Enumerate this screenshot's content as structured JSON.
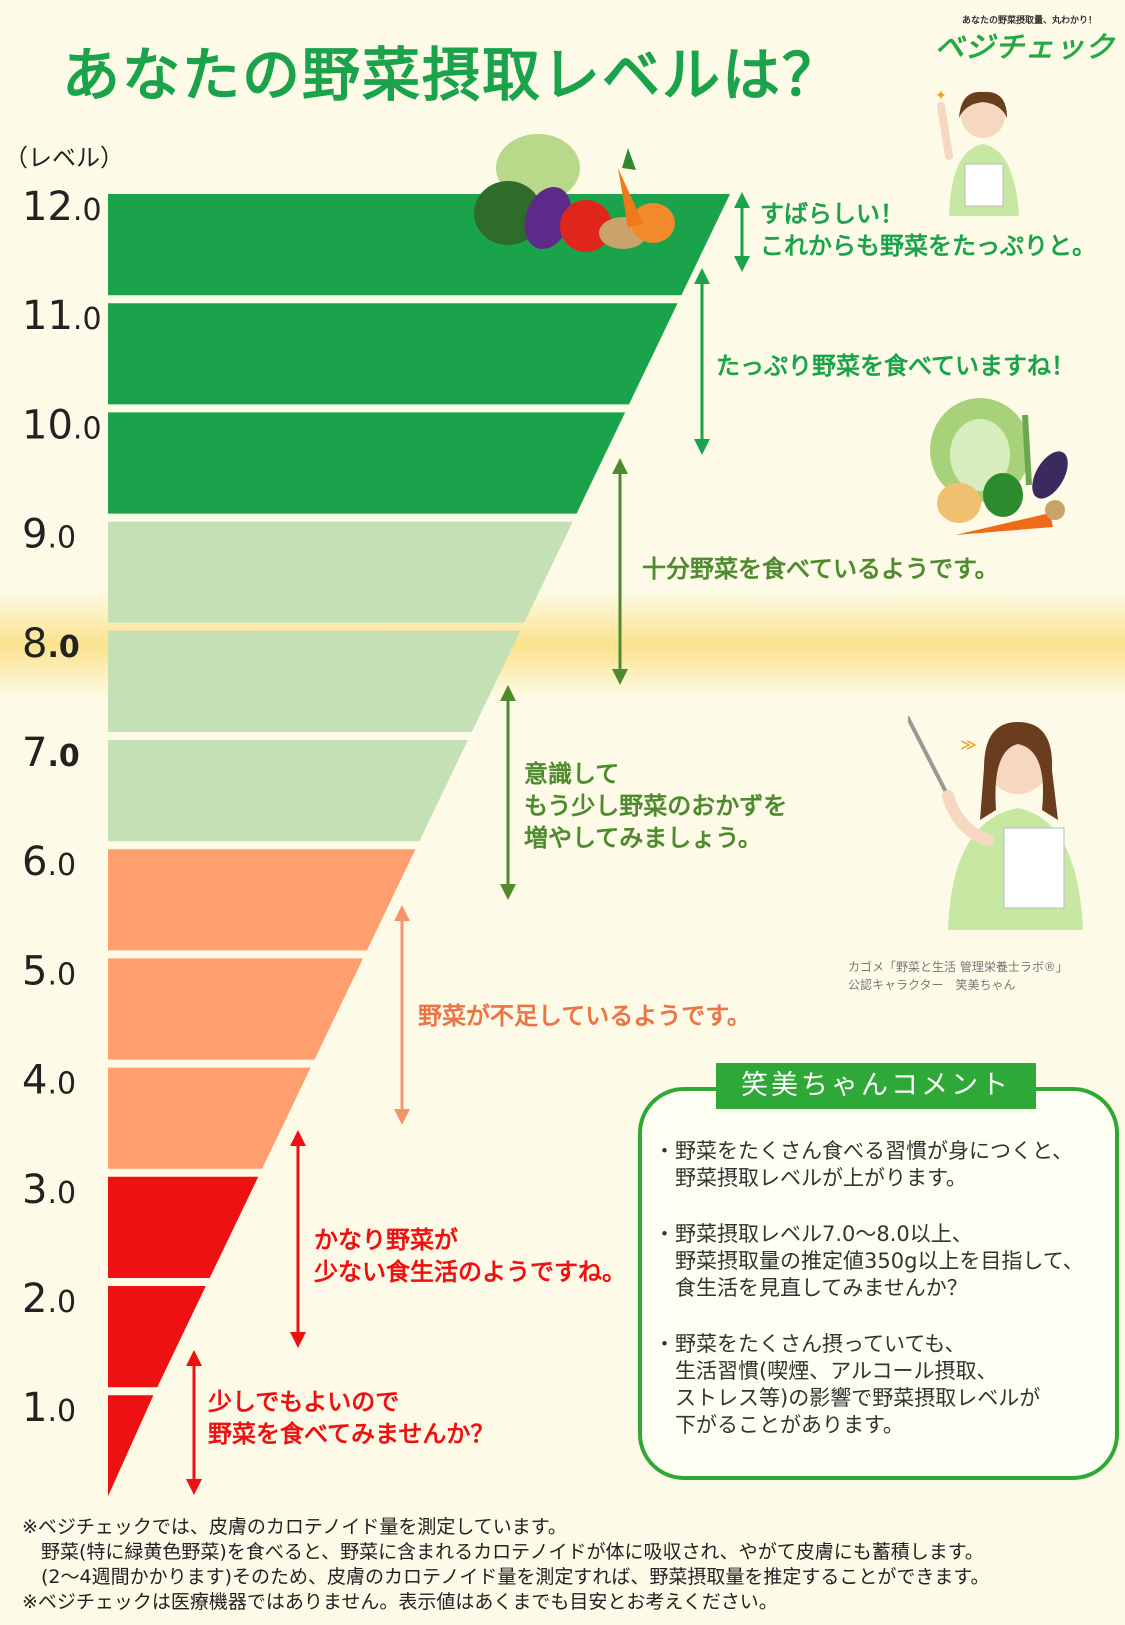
{
  "title": "あなたの野菜摂取レベルは？",
  "logo": {
    "tagline": "あなたの野菜摂取量、丸わかり！",
    "name": "ベジチェック"
  },
  "chart_data": {
    "type": "bar",
    "orientation": "horizontal",
    "unit_label": "（レベル）",
    "levels": [
      12,
      11,
      10,
      9,
      8,
      7,
      6,
      5,
      4,
      3,
      2,
      1
    ],
    "tick_labels": [
      {
        "int": "12",
        "dec": ".0"
      },
      {
        "int": "11",
        "dec": ".0"
      },
      {
        "int": "10",
        "dec": ".0"
      },
      {
        "int": "9",
        "dec": ".0"
      },
      {
        "int": "8",
        "dec": ".0"
      },
      {
        "int": "7",
        "dec": ".0"
      },
      {
        "int": "6",
        "dec": ".0"
      },
      {
        "int": "5",
        "dec": ".0"
      },
      {
        "int": "4",
        "dec": ".0"
      },
      {
        "int": "3",
        "dec": ".0"
      },
      {
        "int": "2",
        "dec": ".0"
      },
      {
        "int": "1",
        "dec": ".0"
      }
    ],
    "highlighted_levels": [
      8,
      7
    ],
    "ranges": [
      {
        "from": 10,
        "to": 12,
        "color": "#1aa34a",
        "arrow_color": "#1aa34a",
        "text_color": "#1aa34a",
        "lines": [
          "すばらしい！",
          "これからも野菜をたっぷりと。"
        ]
      },
      {
        "from": 10,
        "to": 12,
        "color": "#1aa34a",
        "arrow_color": "#1aa34a",
        "text_color": "#1aa34a",
        "lines": [
          "たっぷり野菜を食べていますね！"
        ]
      },
      {
        "from": 7,
        "to": 9,
        "color": "#c4e0b4",
        "arrow_color": "#4f8a2f",
        "text_color": "#4f8a2f",
        "lines": [
          "十分野菜を食べているようです。"
        ]
      },
      {
        "from": 7,
        "to": 9,
        "color": "#c4e0b4",
        "arrow_color": "#4f8a2f",
        "text_color": "#4f8a2f",
        "lines": [
          "意識して",
          "もう少し野菜のおかずを",
          "増やしてみましょう。"
        ]
      },
      {
        "from": 4,
        "to": 6,
        "color": "#ff9e6e",
        "arrow_color": "#f4946a",
        "text_color": "#ed7444",
        "lines": [
          "野菜が不足しているようです。"
        ]
      },
      {
        "from": 1,
        "to": 3,
        "color": "#ee1111",
        "arrow_color": "#ee1111",
        "text_color": "#ee1111",
        "lines": [
          "かなり野菜が",
          "少ない食生活のようですね。"
        ]
      },
      {
        "from": 1,
        "to": 3,
        "color": "#ee1111",
        "arrow_color": "#ee1111",
        "text_color": "#ee1111",
        "lines": [
          "少しでもよいので",
          "野菜を食べてみませんか？"
        ]
      }
    ]
  },
  "character_caption": [
    "カゴメ「野菜と生活 管理栄養士ラボ®」",
    "公認キャラクター　笑美ちゃん"
  ],
  "comment": {
    "title": "笑美ちゃんコメント",
    "items": [
      [
        "・野菜をたくさん食べる習慣が身につくと、",
        "　野菜摂取レベルが上がります。"
      ],
      [
        "・野菜摂取レベル7.0～8.0以上、",
        "　野菜摂取量の推定値350g以上を目指して、",
        "　食生活を見直してみませんか？"
      ],
      [
        "・野菜をたくさん摂っていても、",
        "　生活習慣(喫煙、アルコール摂取、",
        "　ストレス等)の影響で野菜摂取レベルが",
        "　下がることがあります。"
      ]
    ]
  },
  "footnotes": [
    "※ベジチェックでは、皮膚のカロテノイド量を測定しています。",
    "　野菜(特に緑黄色野菜)を食べると、野菜に含まれるカロテノイドが体に吸収され、やがて皮膚にも蓄積します。",
    "　(2～4週間かかります)そのため、皮膚のカロテノイド量を測定すれば、野菜摂取量を推定することができます。",
    "※ベジチェックは医療機器ではありません。表示値はあくまでも目安とお考えください。"
  ],
  "colors": {
    "green": "#1aa34a",
    "light_green": "#c4e0b4",
    "orange": "#ff9e6e",
    "red": "#ee1111",
    "background": "#fdfbe8"
  }
}
